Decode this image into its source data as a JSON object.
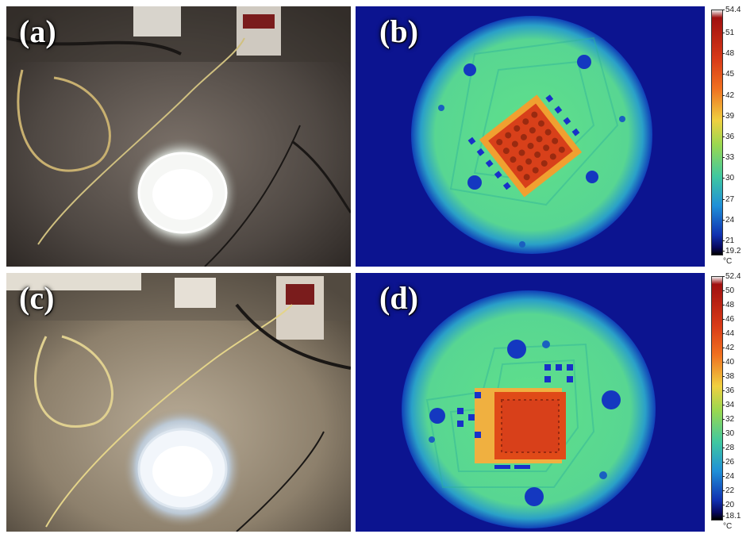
{
  "panels": {
    "a": {
      "label": "(a)"
    },
    "b": {
      "label": "(b)"
    },
    "c": {
      "label": "(c)"
    },
    "d": {
      "label": "(d)"
    }
  },
  "scales": {
    "b": {
      "ticks": [
        "54.4",
        "51",
        "48",
        "45",
        "42",
        "39",
        "36",
        "33",
        "30",
        "27",
        "24",
        "21",
        "19.2"
      ],
      "unit": "°C"
    },
    "d": {
      "ticks": [
        "52.4",
        "50",
        "48",
        "46",
        "44",
        "42",
        "40",
        "38",
        "36",
        "34",
        "32",
        "30",
        "28",
        "26",
        "24",
        "22",
        "20",
        "18.1"
      ],
      "unit": "°C"
    }
  },
  "colors": {
    "cold": "#0a1a9a",
    "mid": "#3fd08a",
    "hot": "#d8401a"
  }
}
